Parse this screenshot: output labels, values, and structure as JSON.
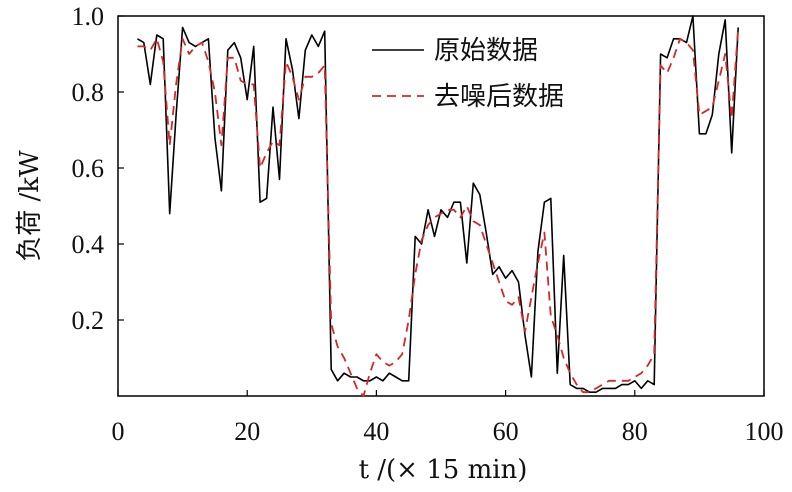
{
  "chart_data": {
    "type": "line",
    "xlabel": "t /(× 15 min)",
    "ylabel": "负荷 /kW",
    "xlim": [
      0,
      100
    ],
    "ylim": [
      0,
      1.0
    ],
    "x_ticks": [
      "0",
      "20",
      "40",
      "60",
      "80",
      "100"
    ],
    "y_ticks": [
      "0.2",
      "0.4",
      "0.6",
      "0.8",
      "1.0"
    ],
    "legend_position": "top-right",
    "series": [
      {
        "name": "原始数据",
        "style": "solid",
        "color": "#000000",
        "x": [
          3,
          4,
          5,
          6,
          7,
          8,
          9,
          10,
          11,
          12,
          13,
          14,
          15,
          16,
          17,
          18,
          19,
          20,
          21,
          22,
          23,
          24,
          25,
          26,
          27,
          28,
          29,
          30,
          31,
          32,
          33,
          34,
          35,
          36,
          37,
          38,
          39,
          40,
          41,
          42,
          43,
          44,
          45,
          46,
          47,
          48,
          49,
          50,
          51,
          52,
          53,
          54,
          55,
          56,
          57,
          58,
          59,
          60,
          61,
          62,
          63,
          64,
          65,
          66,
          67,
          68,
          69,
          70,
          71,
          72,
          73,
          74,
          75,
          76,
          77,
          78,
          79,
          80,
          81,
          82,
          83,
          84,
          85,
          86,
          87,
          88,
          89,
          90,
          91,
          92,
          93,
          94,
          95,
          96
        ],
        "y": [
          0.94,
          0.93,
          0.82,
          0.95,
          0.94,
          0.48,
          0.74,
          0.97,
          0.93,
          0.92,
          0.93,
          0.94,
          0.68,
          0.54,
          0.91,
          0.93,
          0.89,
          0.78,
          0.92,
          0.51,
          0.52,
          0.76,
          0.57,
          0.94,
          0.86,
          0.73,
          0.91,
          0.95,
          0.92,
          0.96,
          0.07,
          0.04,
          0.06,
          0.05,
          0.05,
          0.04,
          0.04,
          0.05,
          0.04,
          0.06,
          0.05,
          0.04,
          0.04,
          0.42,
          0.4,
          0.49,
          0.42,
          0.49,
          0.47,
          0.51,
          0.51,
          0.35,
          0.56,
          0.53,
          0.43,
          0.32,
          0.34,
          0.31,
          0.33,
          0.3,
          0.16,
          0.05,
          0.38,
          0.51,
          0.52,
          0.06,
          0.37,
          0.03,
          0.02,
          0.02,
          0.01,
          0.01,
          0.02,
          0.02,
          0.02,
          0.03,
          0.03,
          0.04,
          0.02,
          0.04,
          0.03,
          0.9,
          0.89,
          0.94,
          0.94,
          0.93,
          1.0,
          0.69,
          0.69,
          0.74,
          0.9,
          0.99,
          0.64,
          0.97
        ]
      },
      {
        "name": "去噪后数据",
        "style": "dashed",
        "color": "#d62728",
        "x": [
          3,
          4,
          5,
          6,
          7,
          8,
          9,
          10,
          11,
          12,
          13,
          14,
          15,
          16,
          17,
          18,
          19,
          20,
          21,
          22,
          23,
          24,
          25,
          26,
          27,
          28,
          29,
          30,
          31,
          32,
          33,
          34,
          35,
          36,
          37,
          38,
          39,
          40,
          41,
          42,
          43,
          44,
          45,
          46,
          47,
          48,
          49,
          50,
          51,
          52,
          53,
          54,
          55,
          56,
          57,
          58,
          59,
          60,
          61,
          62,
          63,
          64,
          65,
          66,
          67,
          68,
          69,
          70,
          71,
          72,
          73,
          74,
          75,
          76,
          77,
          78,
          79,
          80,
          81,
          82,
          83,
          84,
          85,
          86,
          87,
          88,
          89,
          90,
          91,
          92,
          93,
          94,
          95,
          96
        ],
        "y": [
          0.92,
          0.92,
          0.91,
          0.94,
          0.88,
          0.66,
          0.82,
          0.94,
          0.9,
          0.92,
          0.93,
          0.88,
          0.8,
          0.66,
          0.89,
          0.89,
          0.83,
          0.82,
          0.82,
          0.6,
          0.64,
          0.67,
          0.66,
          0.88,
          0.84,
          0.78,
          0.84,
          0.84,
          0.85,
          0.87,
          0.19,
          0.13,
          0.1,
          0.06,
          0.02,
          0.0,
          0.06,
          0.11,
          0.09,
          0.08,
          0.09,
          0.11,
          0.2,
          0.32,
          0.41,
          0.45,
          0.47,
          0.48,
          0.49,
          0.49,
          0.47,
          0.5,
          0.46,
          0.45,
          0.4,
          0.35,
          0.3,
          0.25,
          0.24,
          0.26,
          0.17,
          0.26,
          0.35,
          0.43,
          0.21,
          0.16,
          0.1,
          0.06,
          0.03,
          0.01,
          0.01,
          0.02,
          0.03,
          0.04,
          0.04,
          0.04,
          0.04,
          0.05,
          0.06,
          0.08,
          0.11,
          0.87,
          0.85,
          0.89,
          0.94,
          0.93,
          0.91,
          0.74,
          0.75,
          0.76,
          0.83,
          0.9,
          0.73,
          0.97
        ]
      }
    ]
  }
}
